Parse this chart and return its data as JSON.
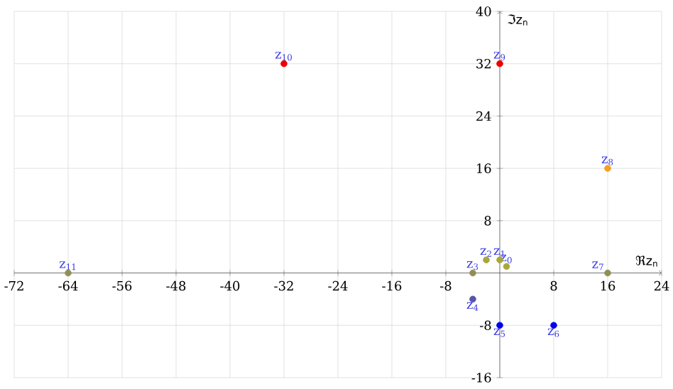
{
  "chart_data": {
    "type": "scatter",
    "xlabel": "ℜz$_{n}$",
    "ylabel": "ℑz$_{n}$",
    "x": [
      1,
      0,
      -2,
      -4,
      -4,
      0,
      8,
      16,
      16,
      0,
      -32,
      -64
    ],
    "values": [
      1,
      2,
      2,
      0,
      -4,
      -8,
      -8,
      0,
      16,
      32,
      32,
      0
    ],
    "colors": [
      "#a8a83a",
      "#a8a83a",
      "#a8a83a",
      "#8f8f55",
      "#5555aa",
      "#0000ee",
      "#0000ee",
      "#8f8f55",
      "#f5a020",
      "#ee0000",
      "#ee0000",
      "#8f8f55"
    ],
    "annotations": [
      {
        "text": "z$_{0}$",
        "x": 1,
        "y": 1
      },
      {
        "text": "z$_{1}$",
        "x": 0,
        "y": 2
      },
      {
        "text": "z$_{2}$",
        "x": -2,
        "y": 2
      },
      {
        "text": "z$_{3}$",
        "x": -4,
        "y": 0
      },
      {
        "text": "z$_{4}$",
        "x": -4,
        "y": -4
      },
      {
        "text": "z$_{5}$",
        "x": 0,
        "y": -8
      },
      {
        "text": "z$_{6}$",
        "x": 8,
        "y": -8
      },
      {
        "text": "z$_{7}$",
        "x": 16,
        "y": 0
      },
      {
        "text": "z$_{8}$",
        "x": 16,
        "y": 16
      },
      {
        "text": "z$_{9}$",
        "x": 0,
        "y": 32
      },
      {
        "text": "z$_{10}$",
        "x": -32,
        "y": 32
      },
      {
        "text": "z$_{11}$",
        "x": -64,
        "y": 0
      }
    ],
    "xlim": [
      -72,
      24
    ],
    "ylim": [
      -16,
      40
    ],
    "xticks": [
      -72,
      -64,
      -56,
      -48,
      -40,
      -32,
      -24,
      -16,
      -8,
      8,
      16,
      24
    ],
    "yticks": [
      -16,
      -8,
      8,
      16,
      24,
      32,
      40
    ],
    "grid": true,
    "marker": "circle"
  }
}
